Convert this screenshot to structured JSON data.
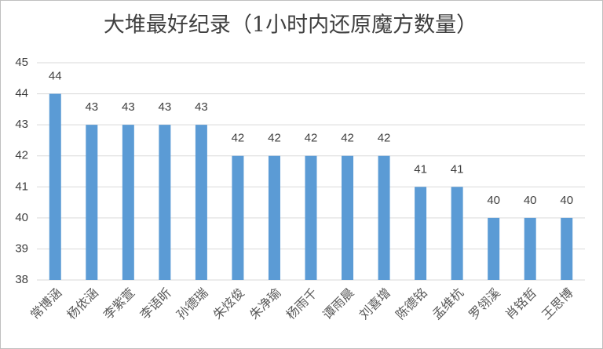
{
  "chart_data": {
    "type": "bar",
    "title": "大堆最好纪录（1小时内还原魔方数量）",
    "categories": [
      "常博涵",
      "杨依涵",
      "李紫萱",
      "李语昕",
      "孙德瑞",
      "朱炫俊",
      "朱净瑜",
      "杨雨千",
      "谭雨晨",
      "刘喜增",
      "陈德铭",
      "孟维杭",
      "罗翎溪",
      "肖铭哲",
      "王思博"
    ],
    "values": [
      44,
      43,
      43,
      43,
      43,
      42,
      42,
      42,
      42,
      42,
      41,
      41,
      40,
      40,
      40
    ],
    "color": "#5b9bd5",
    "ylim": [
      38,
      45
    ],
    "yticks": [
      38,
      39,
      40,
      41,
      42,
      43,
      44,
      45
    ],
    "grid": true
  }
}
